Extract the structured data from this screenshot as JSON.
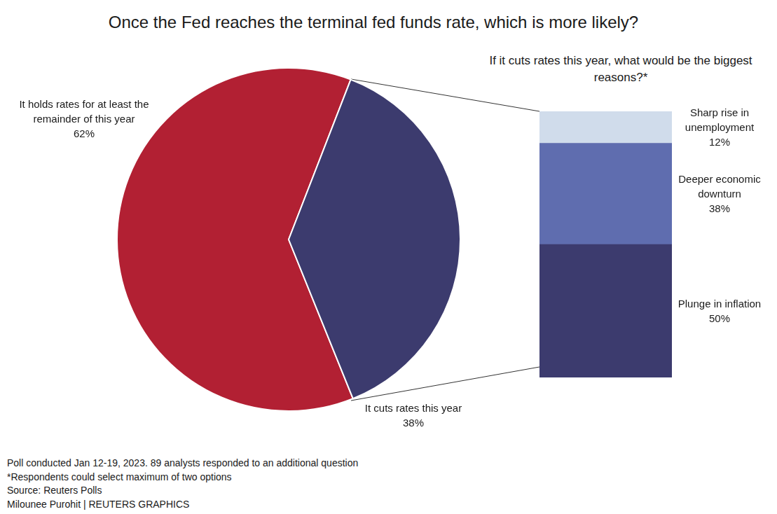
{
  "chart_data": [
    {
      "type": "pie",
      "title": "Once the Fed reaches the terminal fed funds rate, which is more likely?",
      "categories": [
        "It holds rates for at least the remainder of this year",
        "It cuts rates this year"
      ],
      "values": [
        62,
        38
      ],
      "value_labels": [
        "62%",
        "38%"
      ],
      "colors": [
        "#b22033",
        "#3c3b6e"
      ],
      "data_labels": true
    },
    {
      "type": "bar",
      "title": "If it cuts rates this year, what would be the biggest reasons?*",
      "categories": [
        "Plunge in inflation",
        "Deeper economic downturn",
        "Sharp rise in unemployment"
      ],
      "values": [
        50,
        38,
        12
      ],
      "value_labels": [
        "50%",
        "38%",
        "12%"
      ],
      "colors": [
        "#3c3b6e",
        "#5f6daf",
        "#d0dceb"
      ],
      "stacked": true,
      "data_labels": true,
      "tick_labels": false,
      "ylim": [
        0,
        100
      ]
    }
  ],
  "notes": [
    "Poll conducted Jan 12-19, 2023. 89 analysts responded to an additional question",
    "*Respondents could select maximum of two options",
    "Source: Reuters Polls",
    "Milounee Purohit | REUTERS GRAPHICS"
  ]
}
